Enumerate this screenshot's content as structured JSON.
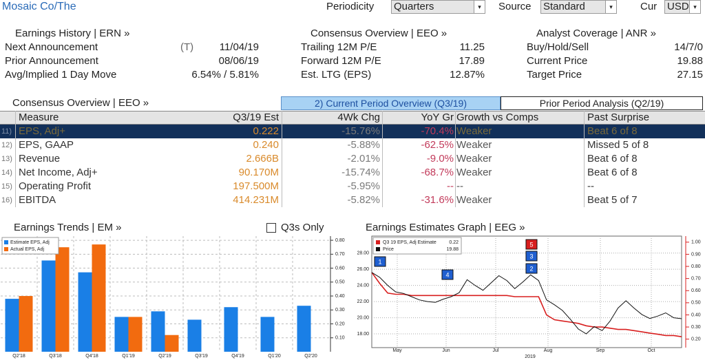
{
  "header": {
    "security": "Mosaic Co/The",
    "periodicity_label": "Periodicity",
    "periodicity": "Quarters",
    "source_label": "Source",
    "source": "Standard",
    "cur_label": "Cur",
    "cur": "USD"
  },
  "earnings_history": {
    "title": "Earnings History | ERN »",
    "rows": [
      {
        "label": "Next Announcement",
        "note": "(T)",
        "value": "11/04/19"
      },
      {
        "label": "Prior Announcement",
        "value": "08/06/19"
      },
      {
        "label": "Avg/Implied 1 Day Move",
        "value": "6.54% / 5.81%"
      }
    ]
  },
  "consensus_summary": {
    "title": "Consensus Overview | EEO »",
    "rows": [
      {
        "label": "Trailing 12M P/E",
        "value": "11.25"
      },
      {
        "label": "Forward 12M P/E",
        "value": "17.89"
      },
      {
        "label": "Est. LTG (EPS)",
        "value": "12.87%"
      }
    ]
  },
  "analyst_coverage": {
    "title": "Analyst Coverage | ANR »",
    "rows": [
      {
        "label": "Buy/Hold/Sell",
        "value": "14/7/0"
      },
      {
        "label": "Current Price",
        "value": "19.88"
      },
      {
        "label": "Target Price",
        "value": "27.15"
      }
    ]
  },
  "table": {
    "title": "Consensus Overview | EEO »",
    "tabs": [
      "2) Current Period Overview (Q3/19)",
      "Prior Period Analysis (Q2/19)"
    ],
    "active_tab": 0,
    "selected_row": 0,
    "columns": [
      "Measure",
      "Q3/19 Est",
      "4Wk Chg",
      "YoY Gr",
      "Growth vs Comps",
      "Past Surprise"
    ],
    "rows": [
      {
        "number": "11)",
        "cells": [
          "EPS, Adj+",
          "0.222",
          "-15.76%",
          "-70.4%",
          "Weaker",
          "Beat 6 of 8"
        ]
      },
      {
        "number": "12)",
        "cells": [
          "EPS, GAAP",
          "0.240",
          "-5.88%",
          "-62.5%",
          "Weaker",
          "Missed 5 of 8"
        ]
      },
      {
        "number": "13)",
        "cells": [
          "Revenue",
          "2.666B",
          "-2.01%",
          "-9.0%",
          "Weaker",
          "Beat 6 of 8"
        ]
      },
      {
        "number": "14)",
        "cells": [
          "Net Income, Adj+",
          "90.170M",
          "-15.74%",
          "-68.7%",
          "Weaker",
          "Beat 6 of 8"
        ]
      },
      {
        "number": "15)",
        "cells": [
          "Operating Profit",
          "197.500M",
          "-5.95%",
          "--",
          "--",
          "--"
        ]
      },
      {
        "number": "16)",
        "cells": [
          "EBITDA",
          "414.231M",
          "-5.82%",
          "-31.6%",
          "Weaker",
          "Beat 5 of 7"
        ]
      }
    ]
  },
  "chart_data": [
    {
      "type": "bar",
      "title": "Earnings Trends | EM »",
      "checkbox_label": "Q3s Only",
      "checked": false,
      "categories": [
        "Q2'18",
        "Q3'18",
        "Q4'18",
        "Q1'19",
        "Q2'19",
        "Q3'19",
        "Q4'19",
        "Q1'20",
        "Q2'20"
      ],
      "series": [
        {
          "name": "Estimate EPS, Adj",
          "color": "#1a7fe6",
          "values": [
            0.38,
            0.655,
            0.57,
            0.25,
            0.29,
            0.23,
            0.32,
            0.25,
            0.33
          ]
        },
        {
          "name": "Actual EPS, Adj",
          "color": "#f26b0f",
          "values": [
            0.4,
            0.75,
            0.77,
            0.25,
            0.12,
            null,
            null,
            null,
            null
          ]
        }
      ],
      "ylim": [
        0,
        0.83
      ],
      "yticks": [
        {
          "value": 0.1,
          "label": "0.10"
        },
        {
          "value": 0.2,
          "label": "0.20"
        },
        {
          "value": 0.3,
          "label": "0.30"
        },
        {
          "value": 0.4,
          "label": "0.40"
        },
        {
          "value": 0.5,
          "label": "0.50"
        },
        {
          "value": 0.6,
          "label": "0.60"
        },
        {
          "value": 0.7,
          "label": "0.70"
        },
        {
          "value": 0.8,
          "label": "0.80"
        }
      ],
      "grid": true
    },
    {
      "type": "line",
      "title": "Earnings Estimates Graph | EEG »",
      "x_labels": [
        "May",
        "Jun",
        "Jul",
        "Aug",
        "Sep",
        "Oct"
      ],
      "year_label": "2019",
      "series": [
        {
          "name": "Q3 19 EPS, Adj Estimate",
          "legend_value": 0.22,
          "color": "#d81e1e",
          "axis": "y2",
          "values": [
            0.75,
            0.66,
            0.58,
            0.57,
            0.57,
            0.56,
            0.56,
            0.56,
            0.56,
            0.56,
            0.56,
            0.56,
            0.56,
            0.56,
            0.56,
            0.56,
            0.56,
            0.56,
            0.55,
            0.55,
            0.55,
            0.55,
            0.4,
            0.36,
            0.35,
            0.34,
            0.33,
            0.31,
            0.3,
            0.3,
            0.29,
            0.28,
            0.28,
            0.27,
            0.26,
            0.25,
            0.24,
            0.23,
            0.23,
            0.22
          ]
        },
        {
          "name": "Price",
          "legend_value": 19.88,
          "color": "#111111",
          "values": [
            25.6,
            25.0,
            24.0,
            23.2,
            23.0,
            22.6,
            22.2,
            22.0,
            21.9,
            22.3,
            22.6,
            23.1,
            24.7,
            24.0,
            23.4,
            24.3,
            25.2,
            24.6,
            23.6,
            24.4,
            25.3,
            24.6,
            22.2,
            21.6,
            20.9,
            19.8,
            18.6,
            18.0,
            18.9,
            18.4,
            19.6,
            21.2,
            22.1,
            21.2,
            20.4,
            19.9,
            20.2,
            20.6,
            20.0,
            19.88
          ]
        }
      ],
      "ylim": [
        16.3,
        30.1
      ],
      "yticks": [
        {
          "value": 18,
          "label": "18.00"
        },
        {
          "value": 20,
          "label": "20.00"
        },
        {
          "value": 22,
          "label": "22.00"
        },
        {
          "value": 24,
          "label": "24.00"
        },
        {
          "value": 26,
          "label": "26.00"
        },
        {
          "value": 28,
          "label": "28.00"
        }
      ],
      "y2lim": [
        0.13,
        1.05
      ],
      "y2ticks": [
        {
          "value": 0.2,
          "label": "0.20"
        },
        {
          "value": 0.3,
          "label": "0.30"
        },
        {
          "value": 0.4,
          "label": "0.40"
        },
        {
          "value": 0.5,
          "label": "0.50"
        },
        {
          "value": 0.6,
          "label": "0.60"
        },
        {
          "value": 0.7,
          "label": "0.70"
        },
        {
          "value": 0.8,
          "label": "0.80"
        },
        {
          "value": 0.9,
          "label": "0.90"
        },
        {
          "value": 1.0,
          "label": "1.00"
        }
      ],
      "markers": [
        {
          "label": "1",
          "color": "#1f5fd0"
        },
        {
          "label": "2",
          "color": "#1f5fd0"
        },
        {
          "label": "3",
          "color": "#1f5fd0"
        },
        {
          "label": "4",
          "color": "#1f5fd0"
        },
        {
          "label": "5",
          "color": "#d81e1e"
        }
      ],
      "grid": true
    }
  ]
}
